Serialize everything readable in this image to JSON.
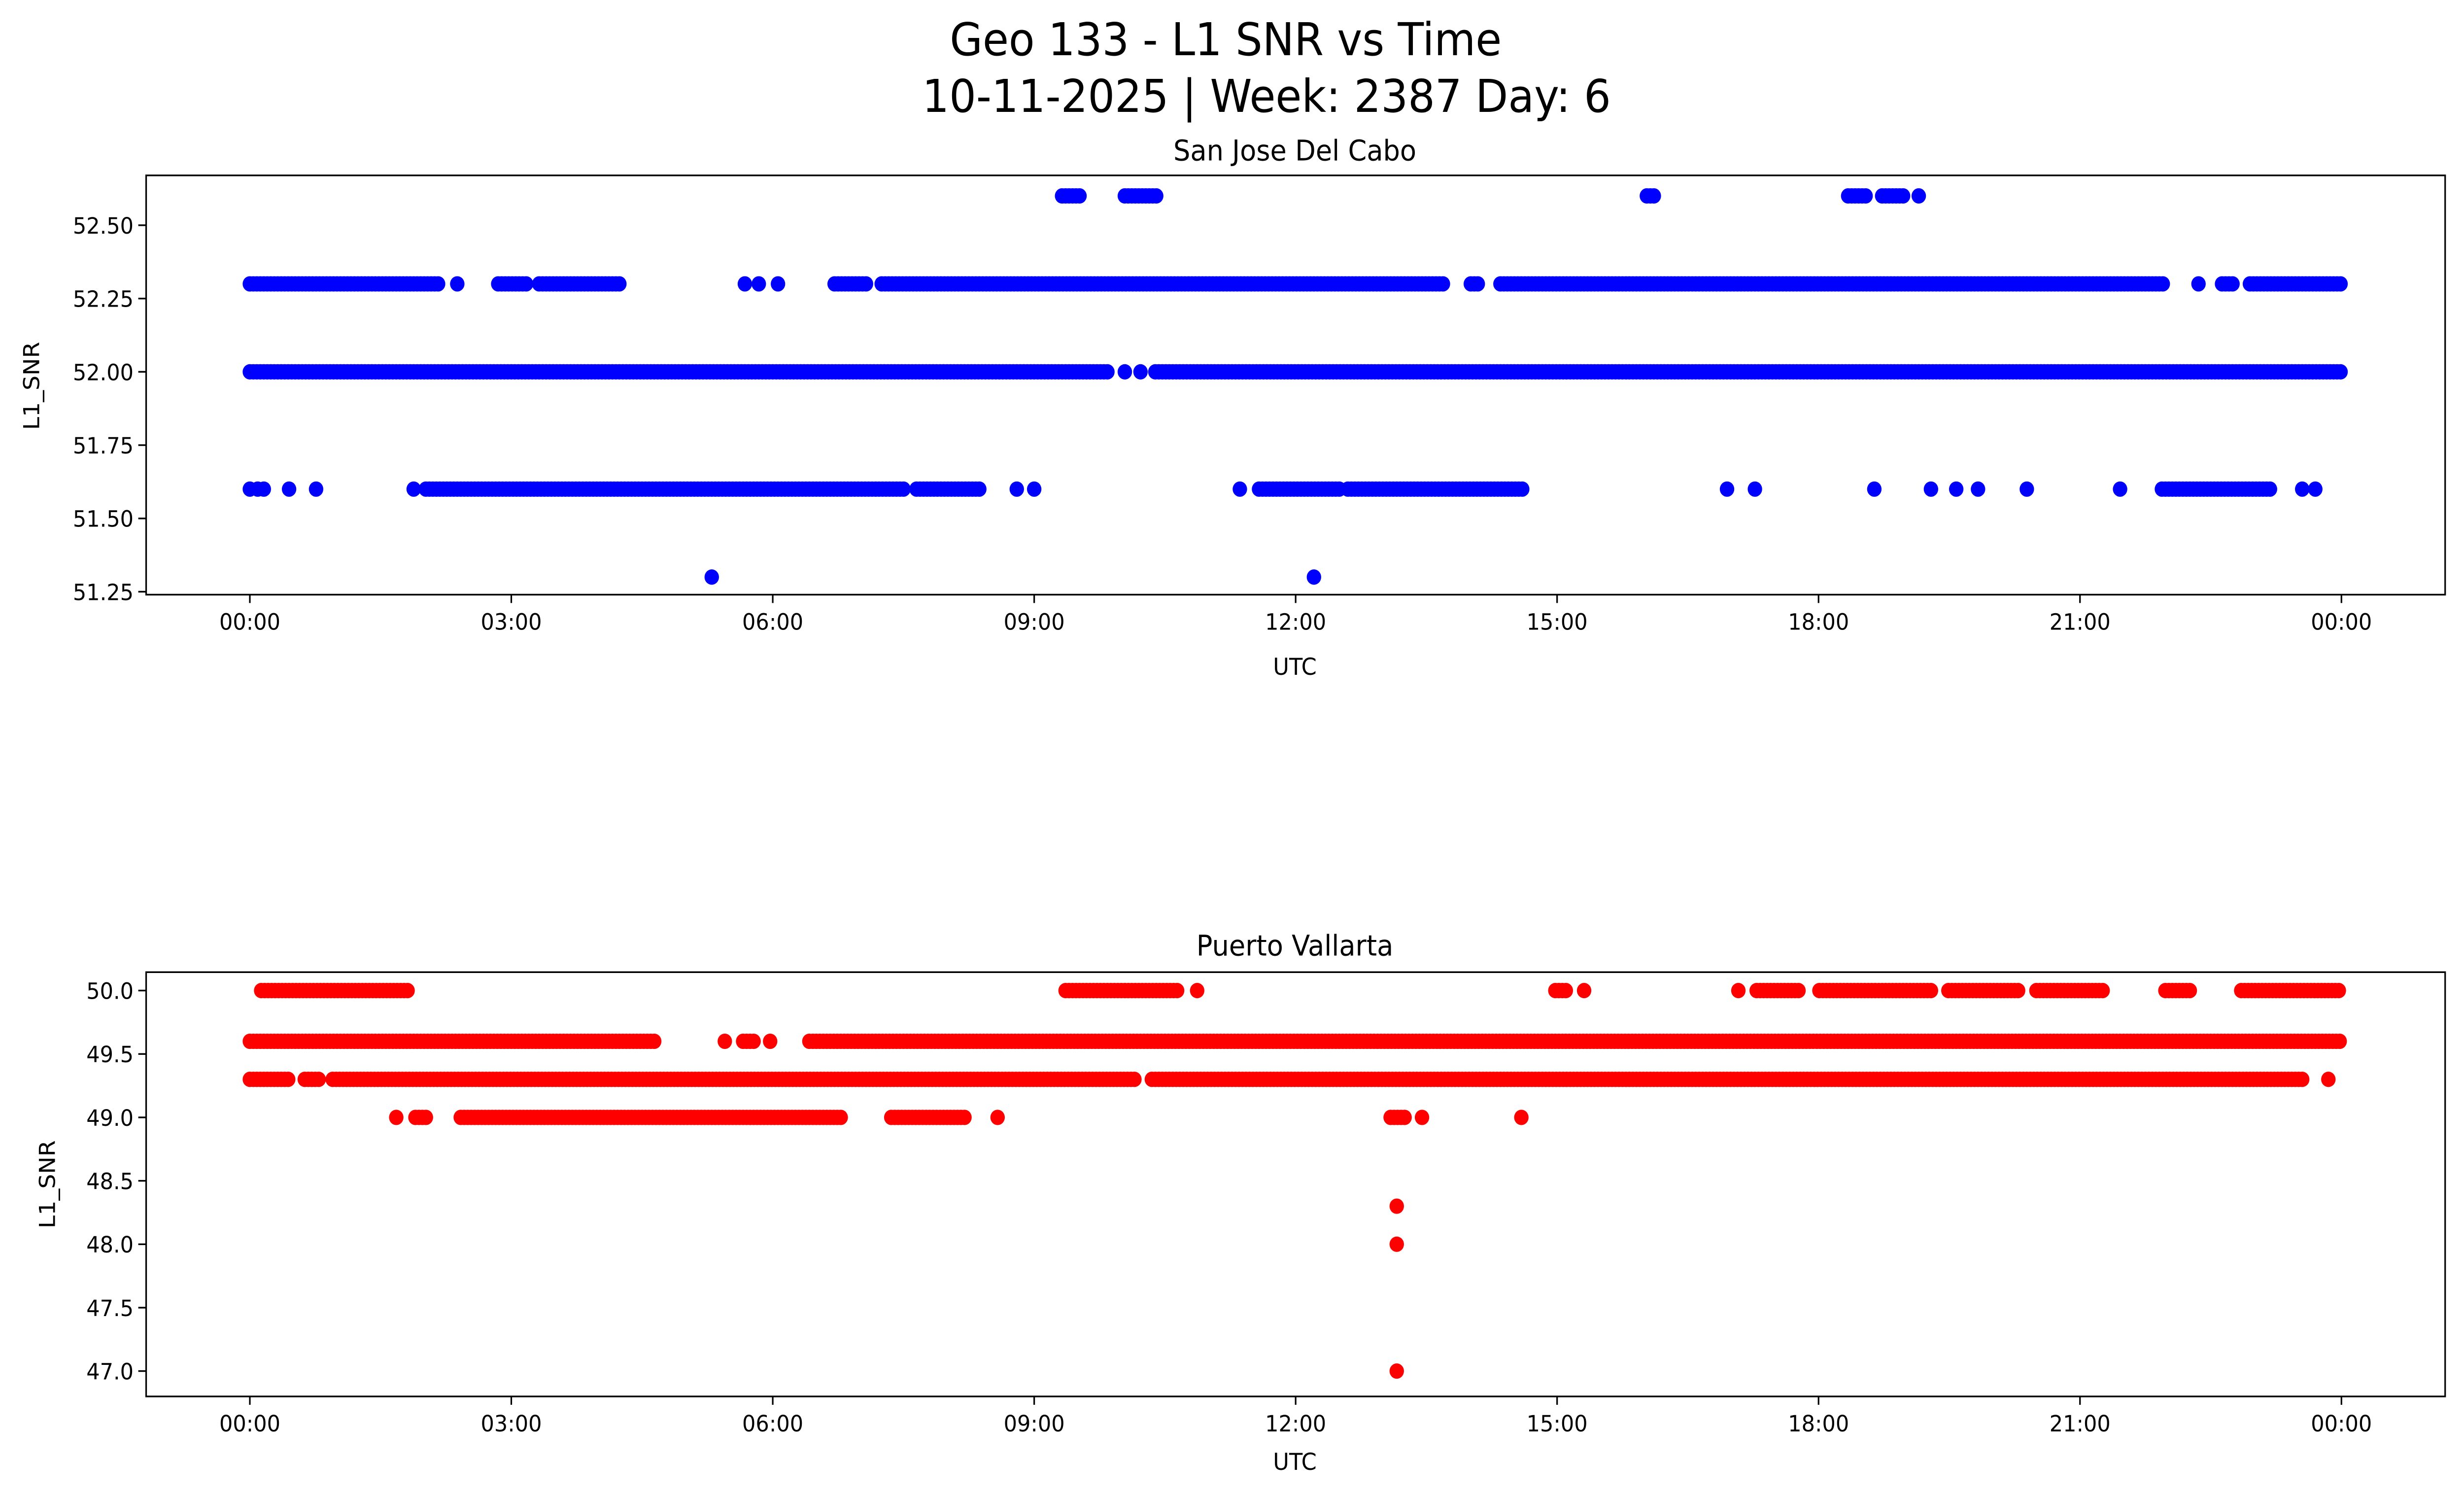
{
  "chart_data": {
    "type": "scatter",
    "title": "Geo 133 - L1 SNR vs Time",
    "subtitle": "10-11-2025 | Week: 2387 Day: 6",
    "x_units": "hours UTC",
    "panels": [
      {
        "title": "San Jose Del Cabo",
        "xlabel": "UTC",
        "ylabel": "L1_SNR",
        "color": "#0000ff",
        "xlim": [
          -1.19,
          25.19
        ],
        "ylim": [
          51.24,
          52.67
        ],
        "xticks": [
          0,
          3,
          6,
          9,
          12,
          15,
          18,
          21,
          24
        ],
        "xtick_labels": [
          "00:00",
          "03:00",
          "06:00",
          "09:00",
          "12:00",
          "15:00",
          "18:00",
          "21:00",
          "00:00"
        ],
        "yticks": [
          51.25,
          51.5,
          51.75,
          52.0,
          52.25,
          52.5
        ],
        "ytick_labels": [
          "51.25",
          "51.50",
          "51.75",
          "52.00",
          "52.25",
          "52.50"
        ],
        "levels": [
          {
            "y": 52.6,
            "runs": [
              [
                9.32,
                9.54
              ],
              [
                10.04,
                10.4
              ],
              [
                16.03,
                16.14
              ],
              [
                18.34,
                18.55
              ],
              [
                18.73,
                18.99
              ]
            ],
            "points": [
              19.15
            ]
          },
          {
            "y": 52.3,
            "runs": [
              [
                0,
                2.18
              ],
              [
                2.85,
                3.19
              ],
              [
                3.32,
                4.26
              ],
              [
                6.71,
                7.1
              ],
              [
                7.25,
                13.72
              ],
              [
                14.01,
                14.12
              ],
              [
                14.35,
                21.98
              ],
              [
                22.63,
                22.77
              ],
              [
                22.95,
                24
              ]
            ],
            "points": [
              2.38,
              5.68,
              5.84,
              6.06,
              22.36
            ]
          },
          {
            "y": 52.0,
            "runs": [
              [
                0,
                9.85
              ],
              [
                10.39,
                24
              ]
            ],
            "points": [
              10.04,
              10.22
            ]
          },
          {
            "y": 51.6,
            "runs": [
              [
                2.02,
                7.5
              ],
              [
                7.65,
                8.4
              ],
              [
                11.58,
                12.5
              ],
              [
                12.6,
                14.6
              ],
              [
                21.94,
                23.19
              ]
            ],
            "points": [
              0,
              0.09,
              0.16,
              0.45,
              0.76,
              1.88,
              8.8,
              9.0,
              11.36,
              16.95,
              17.27,
              18.64,
              19.29,
              19.58,
              19.83,
              20.39,
              21.46,
              23.55,
              23.7
            ]
          },
          {
            "y": 51.3,
            "runs": [],
            "points": [
              5.3,
              12.21
            ]
          }
        ]
      },
      {
        "title": "Puerto Vallarta",
        "xlabel": "UTC",
        "ylabel": "L1_SNR",
        "color": "#ff0000",
        "xlim": [
          -1.19,
          25.19
        ],
        "ylim": [
          46.8,
          50.145
        ],
        "xticks": [
          0,
          3,
          6,
          9,
          12,
          15,
          18,
          21,
          24
        ],
        "xtick_labels": [
          "00:00",
          "03:00",
          "06:00",
          "09:00",
          "12:00",
          "15:00",
          "18:00",
          "21:00",
          "00:00"
        ],
        "yticks": [
          47.0,
          47.5,
          48.0,
          48.5,
          49.0,
          49.5,
          50.0
        ],
        "ytick_labels": [
          "47.0",
          "47.5",
          "48.0",
          "48.5",
          "49.0",
          "49.5",
          "50.0"
        ],
        "levels": [
          {
            "y": 50.0,
            "runs": [
              [
                0.13,
                1.84
              ],
              [
                9.36,
                10.66
              ],
              [
                14.98,
                15.13
              ],
              [
                17.29,
                17.8
              ],
              [
                18.01,
                19.31
              ],
              [
                19.49,
                20.3
              ],
              [
                20.5,
                21.29
              ],
              [
                21.98,
                22.29
              ],
              [
                22.85,
                24
              ]
            ],
            "points": [
              10.87,
              15.31,
              17.08
            ]
          },
          {
            "y": 49.6,
            "runs": [
              [
                0,
                4.67
              ],
              [
                5.66,
                5.81
              ],
              [
                6.42,
                24
              ]
            ],
            "points": [
              5.45,
              5.97
            ]
          },
          {
            "y": 49.3,
            "runs": [
              [
                0,
                0.45
              ],
              [
                0.63,
                0.82
              ],
              [
                0.95,
                10.15
              ],
              [
                10.35,
                23.55
              ]
            ],
            "points": [
              23.85
            ]
          },
          {
            "y": 49.0,
            "runs": [
              [
                1.9,
                2.04
              ],
              [
                2.42,
                6.8
              ],
              [
                7.36,
                8.2
              ],
              [
                13.09,
                13.27
              ]
            ],
            "points": [
              1.68,
              8.58,
              13.45,
              14.59
            ]
          },
          {
            "y": 48.3,
            "runs": [],
            "points": [
              13.16
            ]
          },
          {
            "y": 48.0,
            "runs": [],
            "points": [
              13.16
            ]
          },
          {
            "y": 47.0,
            "runs": [],
            "points": [
              13.16
            ]
          }
        ]
      }
    ]
  }
}
